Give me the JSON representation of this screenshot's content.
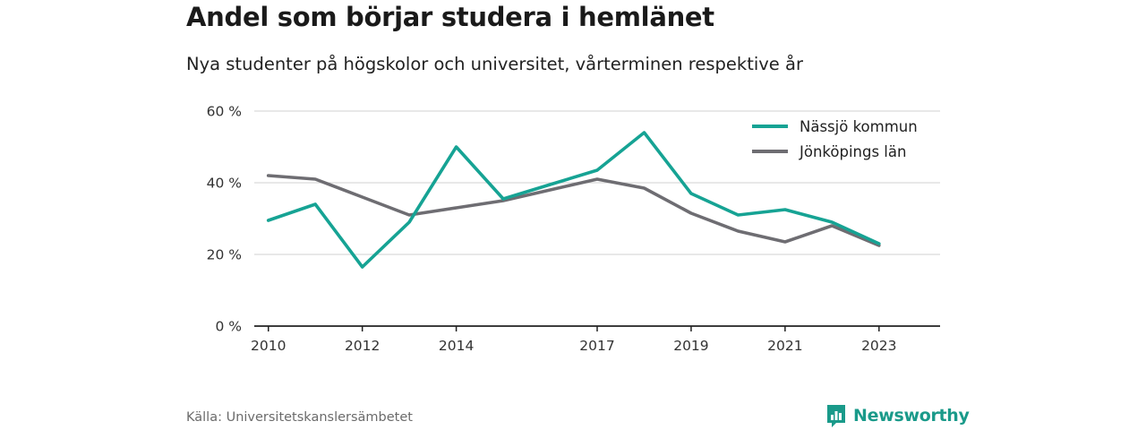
{
  "title": "Andel som börjar studera i hemlänet",
  "subtitle": "Nya studenter på högskolor och universitet, vårterminen respektive år",
  "source": "Källa: Universitetskanslersämbetet",
  "brand": {
    "name": "Newsworthy",
    "icon": "bar-chart-icon",
    "color": "#1a9a8a"
  },
  "chart_data": {
    "type": "line",
    "y_unit": "%",
    "ylim": [
      0,
      60
    ],
    "y_ticks": [
      "0 %",
      "20 %",
      "40 %",
      "60 %"
    ],
    "x_range": [
      2009.7,
      2024.3
    ],
    "x_ticks": [
      "2010",
      "2012",
      "2014",
      "2017",
      "2019",
      "2021",
      "2023"
    ],
    "grid": true,
    "legend_position": "top-right",
    "series": [
      {
        "name": "Nässjö kommun",
        "color": "#16a394",
        "points": [
          [
            2010,
            29.5
          ],
          [
            2011,
            34.0
          ],
          [
            2012,
            16.5
          ],
          [
            2013,
            29.0
          ],
          [
            2014,
            50.0
          ],
          [
            2015,
            35.5
          ],
          [
            2016,
            39.5
          ],
          [
            2017,
            43.5
          ],
          [
            2018,
            54.0
          ],
          [
            2019,
            37.0
          ],
          [
            2020,
            31.0
          ],
          [
            2021,
            32.5
          ],
          [
            2022,
            29.0
          ],
          [
            2023,
            23.0
          ]
        ]
      },
      {
        "name": "Jönköpings län",
        "color": "#6e6d72",
        "points": [
          [
            2010,
            42.0
          ],
          [
            2011,
            41.0
          ],
          [
            2012,
            36.0
          ],
          [
            2013,
            31.0
          ],
          [
            2014,
            33.0
          ],
          [
            2015,
            35.0
          ],
          [
            2016,
            38.0
          ],
          [
            2017,
            41.0
          ],
          [
            2018,
            38.5
          ],
          [
            2019,
            31.5
          ],
          [
            2020,
            26.5
          ],
          [
            2021,
            23.5
          ],
          [
            2022,
            28.0
          ],
          [
            2023,
            22.5
          ]
        ]
      }
    ]
  }
}
